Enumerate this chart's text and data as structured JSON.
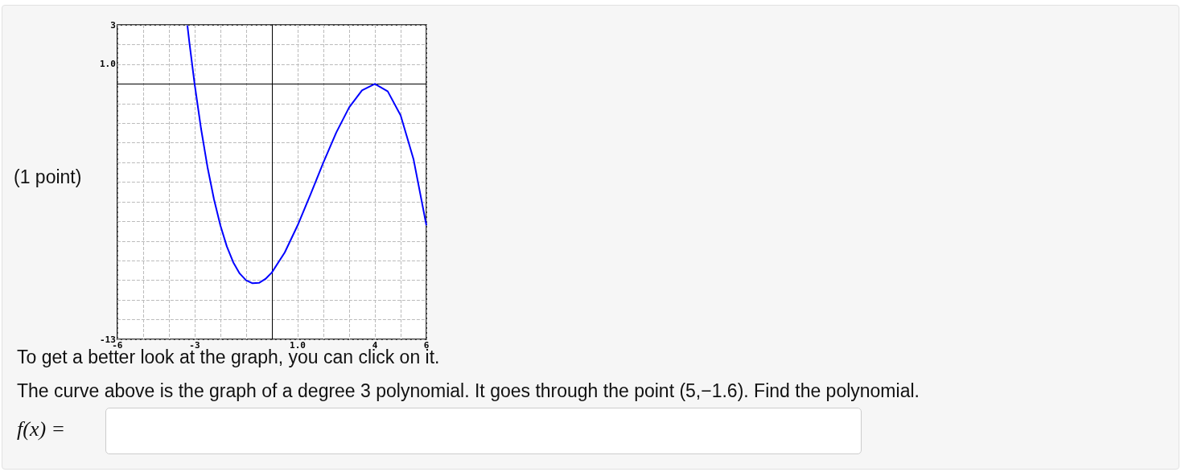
{
  "chart_data": {
    "type": "line",
    "x": [
      -3.28,
      -3.2,
      -3,
      -2.75,
      -2.5,
      -2.25,
      -2,
      -1.75,
      -1.5,
      -1.25,
      -1,
      -0.75,
      -0.5,
      -0.25,
      0,
      0.5,
      1,
      1.5,
      2,
      2.5,
      3,
      3.5,
      4,
      4.5,
      5,
      5.5,
      6
    ],
    "series": [
      {
        "color": "#0000ff",
        "values": [
          2.97,
          2.07,
          0,
          -2.28,
          -4.23,
          -5.86,
          -7.2,
          -8.27,
          -9.08,
          -9.65,
          -10,
          -10.15,
          -10.13,
          -9.93,
          -9.6,
          -8.58,
          -7.2,
          -5.63,
          -4,
          -2.48,
          -1.2,
          -0.33,
          0,
          -0.38,
          -1.6,
          -3.83,
          -7.2
        ]
      }
    ],
    "xlim": [
      -6,
      6
    ],
    "xticks": [
      -6,
      {
        "value": -5,
        "label": null
      },
      {
        "value": -4,
        "label": null
      },
      -3,
      {
        "value": -2,
        "label": null
      },
      {
        "value": -1,
        "label": null
      },
      {
        "value": 0,
        "label": null
      },
      {
        "value": 1,
        "label": "1.0"
      },
      {
        "value": 2,
        "label": null
      },
      {
        "value": 3,
        "label": null
      },
      4,
      {
        "value": 5,
        "label": null
      },
      6
    ],
    "ylim": [
      -13,
      3
    ],
    "yticks": [
      -13,
      {
        "value": -12,
        "label": null
      },
      {
        "value": -11,
        "label": null
      },
      {
        "value": -10,
        "label": null
      },
      {
        "value": -9,
        "label": null
      },
      {
        "value": -8,
        "label": null
      },
      {
        "value": -7,
        "label": null
      },
      {
        "value": -6,
        "label": null
      },
      {
        "value": -5,
        "label": null
      },
      {
        "value": -4,
        "label": null
      },
      {
        "value": -3,
        "label": null
      },
      {
        "value": -2,
        "label": null
      },
      {
        "value": -1,
        "label": null
      },
      {
        "value": 0,
        "label": null
      },
      {
        "value": 1,
        "label": "1.0"
      },
      {
        "value": 2,
        "label": null
      },
      3
    ],
    "grid": true,
    "marker": "none",
    "line_style": "solid",
    "annotations": [
      "(1 point)",
      "To get a better look at the graph, you can click on it.",
      "The curve above is the graph of a degree 3 polynomial. It goes through the point (5,−1.6). Find the polynomial.",
      "f(x) ="
    ]
  }
}
